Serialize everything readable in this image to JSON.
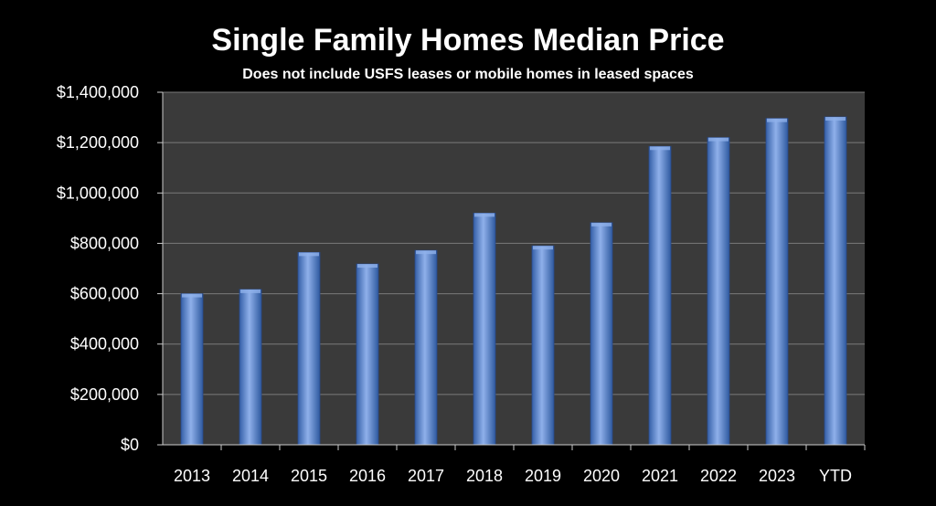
{
  "chart_data": {
    "type": "bar",
    "title": "Single Family Homes Median Price",
    "subtitle": "Does not include USFS leases or mobile homes in leased spaces",
    "xlabel": "",
    "ylabel": "",
    "categories": [
      "2013",
      "2014",
      "2015",
      "2016",
      "2017",
      "2018",
      "2019",
      "2020",
      "2021",
      "2022",
      "2023",
      "YTD"
    ],
    "values": [
      600000,
      617000,
      764000,
      718000,
      772000,
      920000,
      790000,
      882000,
      1185000,
      1220000,
      1296000,
      1302000
    ],
    "ylim": [
      0,
      1400000
    ],
    "yticks": [
      0,
      200000,
      400000,
      600000,
      800000,
      1000000,
      1200000,
      1400000
    ],
    "ytick_labels": [
      "$0",
      "$200,000",
      "$400,000",
      "$600,000",
      "$800,000",
      "$1,000,000",
      "$1,200,000",
      "$1,400,000"
    ],
    "grid": true,
    "legend": "none",
    "colors": {
      "background": "#000000",
      "plot_area": "#3a3a3a",
      "bar": "#4a78c8",
      "bar_highlight": "#8fb0ea",
      "gridline": "#7a7a7a",
      "text": "#ffffff"
    }
  }
}
